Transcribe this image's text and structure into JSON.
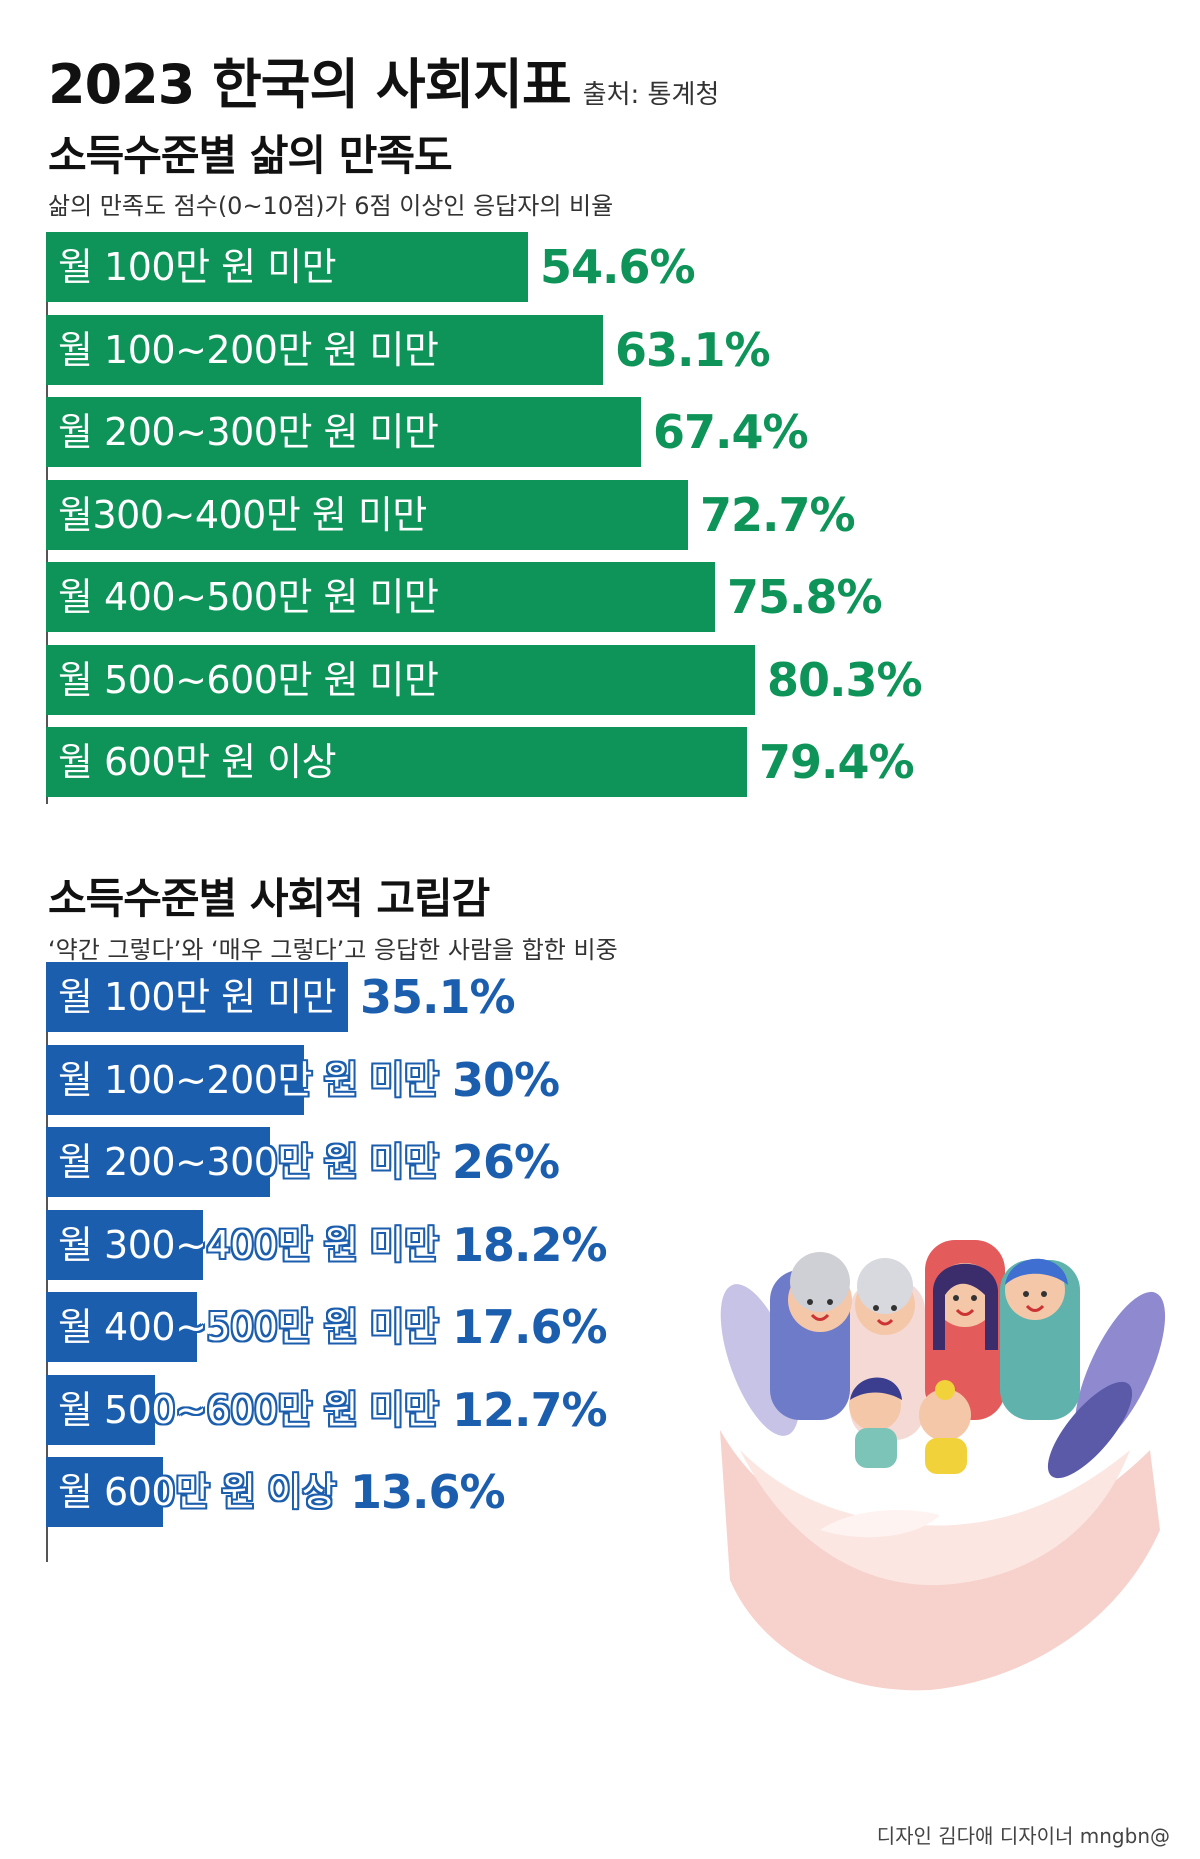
{
  "header": {
    "title": "2023 한국의 사회지표",
    "source": "출처: 통계청"
  },
  "colors": {
    "green": "#0e9358",
    "blue": "#1c5eae"
  },
  "chart_data": [
    {
      "type": "bar",
      "orientation": "horizontal",
      "title": "소득수준별 삶의 만족도",
      "subtitle": "삶의 만족도 점수(0~10점)가 6점 이상인 응답자의 비율",
      "categories": [
        "월 100만 원 미만",
        "월 100~200만 원 미만",
        "월 200~300만 원 미만",
        "월300~400만 원 미만",
        "월 400~500만 원 미만",
        "월 500~600만 원 미만",
        "월 600만 원 이상"
      ],
      "values": [
        54.6,
        63.1,
        67.4,
        72.7,
        75.8,
        80.3,
        79.4
      ],
      "labels": [
        "54.6%",
        "63.1%",
        "67.4%",
        "72.7%",
        "75.8%",
        "80.3%",
        "79.4%"
      ],
      "unit": "%",
      "color": "#0e9358"
    },
    {
      "type": "bar",
      "orientation": "horizontal",
      "title": "소득수준별 사회적 고립감",
      "subtitle": "‘약간 그렇다’와 ‘매우 그렇다’고 응답한 사람을 합한 비중",
      "categories": [
        "월 100만 원 미만",
        "월 100~200만 원 미만",
        "월 200~300만 원 미만",
        "월 300~400만 원 미만",
        "월 400~500만 원 미만",
        "월 500~600만 원 미만",
        "월 600만 원 이상"
      ],
      "values": [
        35.1,
        30,
        26,
        18.2,
        17.6,
        12.7,
        13.6
      ],
      "labels": [
        "35.1%",
        "30%",
        "26%",
        "18.2%",
        "17.6%",
        "12.7%",
        "13.6%"
      ],
      "unit": "%",
      "color": "#1c5eae"
    }
  ],
  "illustration": {
    "icon": "family-heart-hands-icon"
  },
  "credit": "디자인 김다애 디자이너 mngbn@"
}
